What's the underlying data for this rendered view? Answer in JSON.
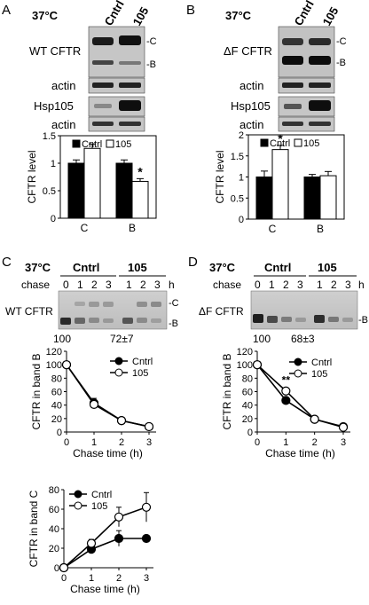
{
  "panels": {
    "A": {
      "letter": "A",
      "temp": "37°C",
      "lanes": [
        "Cntrl",
        "105"
      ],
      "blot_label": "WT CFTR",
      "band_c": "-C",
      "band_b": "-B",
      "actin1": "actin",
      "hsp": "Hsp105",
      "actin2": "actin",
      "star": "*"
    },
    "B": {
      "letter": "B",
      "temp": "37°C",
      "lanes": [
        "Cntrl",
        "105"
      ],
      "blot_label": "ΔF CFTR",
      "band_c": "-C",
      "band_b": "-B",
      "actin1": "actin",
      "hsp": "Hsp105",
      "actin2": "actin",
      "star": "*"
    },
    "C": {
      "letter": "C",
      "temp": "37°C",
      "groups": [
        "Cntrl",
        "105"
      ],
      "chase_label": "chase",
      "chase_times": [
        "0",
        "1",
        "2",
        "3",
        "1",
        "2",
        "3"
      ],
      "unit": "h",
      "blot_label": "WT CFTR",
      "band_c": "-C",
      "band_b": "-B",
      "pct_left": "100",
      "pct_right": "72±7"
    },
    "D": {
      "letter": "D",
      "temp": "37°C",
      "groups": [
        "Cntrl",
        "105"
      ],
      "chase_label": "chase",
      "chase_times": [
        "0",
        "1",
        "2",
        "3",
        "1",
        "2",
        "3"
      ],
      "unit": "h",
      "blot_label": "ΔF CFTR",
      "band_b": "-B",
      "pct_left": "100",
      "pct_right": "68±3",
      "star": "**"
    }
  },
  "colors": {
    "cntrl": "#000000",
    "treated": "#ffffff"
  },
  "chart_data": [
    {
      "id": "A-bar",
      "type": "bar",
      "ylabel": "CFTR level",
      "categories": [
        "C",
        "B"
      ],
      "ylim": [
        0,
        1.5
      ],
      "yticks": [
        "0",
        "0.5",
        "1",
        "1.5"
      ],
      "series": [
        {
          "name": "Cntrl",
          "values": [
            1.0,
            1.0
          ],
          "errors": [
            0.06,
            0.06
          ]
        },
        {
          "name": "105",
          "values": [
            1.27,
            0.67
          ],
          "errors": [
            0.08,
            0.05
          ]
        }
      ],
      "legend": "top"
    },
    {
      "id": "B-bar",
      "type": "bar",
      "ylabel": "CFTR level",
      "categories": [
        "C",
        "B"
      ],
      "ylim": [
        0,
        2.0
      ],
      "yticks": [
        "0",
        "0.5",
        "1",
        "1.5",
        "2"
      ],
      "series": [
        {
          "name": "Cntrl",
          "values": [
            1.0,
            1.0
          ],
          "errors": [
            0.14,
            0.06
          ]
        },
        {
          "name": "105",
          "values": [
            1.65,
            1.03
          ],
          "errors": [
            0.1,
            0.1
          ]
        }
      ],
      "legend": "top"
    },
    {
      "id": "C-band-B",
      "type": "line",
      "ylabel": "CFTR in band B",
      "xlabel": "Chase time (h)",
      "x": [
        0,
        1,
        2,
        3
      ],
      "xlim": [
        0,
        3
      ],
      "ylim": [
        0,
        120
      ],
      "yticks": [
        "0",
        "20",
        "40",
        "60",
        "80",
        "100",
        "120"
      ],
      "series": [
        {
          "name": "Cntrl",
          "values": [
            100,
            43,
            17,
            8
          ],
          "errors": [
            0,
            7,
            3,
            2
          ]
        },
        {
          "name": "105",
          "values": [
            100,
            41,
            17,
            8
          ],
          "errors": [
            0,
            5,
            3,
            2
          ]
        }
      ],
      "legend": "top-right"
    },
    {
      "id": "D-band-B",
      "type": "line",
      "ylabel": "CFTR in band B",
      "xlabel": "Chase time (h)",
      "x": [
        0,
        1,
        2,
        3
      ],
      "xlim": [
        0,
        3
      ],
      "ylim": [
        0,
        120
      ],
      "yticks": [
        "0",
        "20",
        "40",
        "60",
        "80",
        "100",
        "120"
      ],
      "series": [
        {
          "name": "Cntrl",
          "values": [
            100,
            47,
            19,
            8
          ],
          "errors": [
            0,
            2,
            2,
            1
          ]
        },
        {
          "name": "105",
          "values": [
            100,
            61,
            19,
            7
          ],
          "errors": [
            0,
            2,
            2,
            1
          ]
        }
      ],
      "legend": "top-right"
    },
    {
      "id": "C-band-C",
      "type": "line",
      "ylabel": "CFTR in band C",
      "xlabel": "Chase time (h)",
      "x": [
        0,
        1,
        2,
        3
      ],
      "xlim": [
        0,
        3
      ],
      "ylim": [
        0,
        80
      ],
      "yticks": [
        "0",
        "20",
        "40",
        "60",
        "80"
      ],
      "series": [
        {
          "name": "Cntrl",
          "values": [
            0,
            19,
            30,
            30
          ],
          "errors": [
            0,
            3,
            8,
            3
          ]
        },
        {
          "name": "105",
          "values": [
            0,
            25,
            52,
            62
          ],
          "errors": [
            0,
            4,
            10,
            15
          ]
        }
      ],
      "legend": "top-left"
    }
  ]
}
